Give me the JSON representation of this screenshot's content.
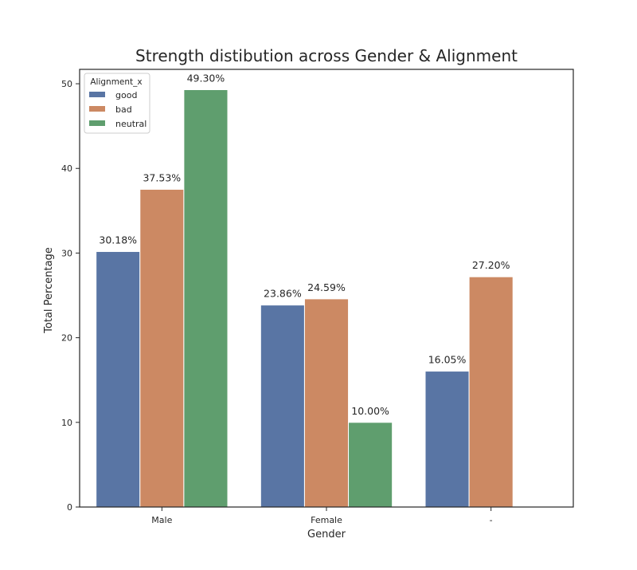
{
  "chart_data": {
    "type": "bar",
    "title": "Strength distibution across Gender & Alignment",
    "xlabel": "Gender",
    "ylabel": "Total Percentage",
    "categories": [
      "Male",
      "Female",
      "-"
    ],
    "series": [
      {
        "name": "good",
        "color": "#5975a4",
        "values": [
          30.18,
          23.86,
          16.05
        ]
      },
      {
        "name": "bad",
        "color": "#cc8963",
        "values": [
          37.53,
          24.59,
          27.2
        ]
      },
      {
        "name": "neutral",
        "color": "#5f9e6e",
        "values": [
          49.3,
          10.0,
          null
        ]
      }
    ],
    "data_labels": [
      [
        "30.18%",
        "23.86%",
        "16.05%"
      ],
      [
        "37.53%",
        "24.59%",
        "27.20%"
      ],
      [
        "49.30%",
        "10.00%",
        null
      ]
    ],
    "ylim": [
      0,
      51.7
    ],
    "yticks": [
      0,
      10,
      20,
      30,
      40,
      50
    ],
    "grid": false,
    "legend": {
      "title": "Alignment_x",
      "placement": "top-left"
    }
  }
}
